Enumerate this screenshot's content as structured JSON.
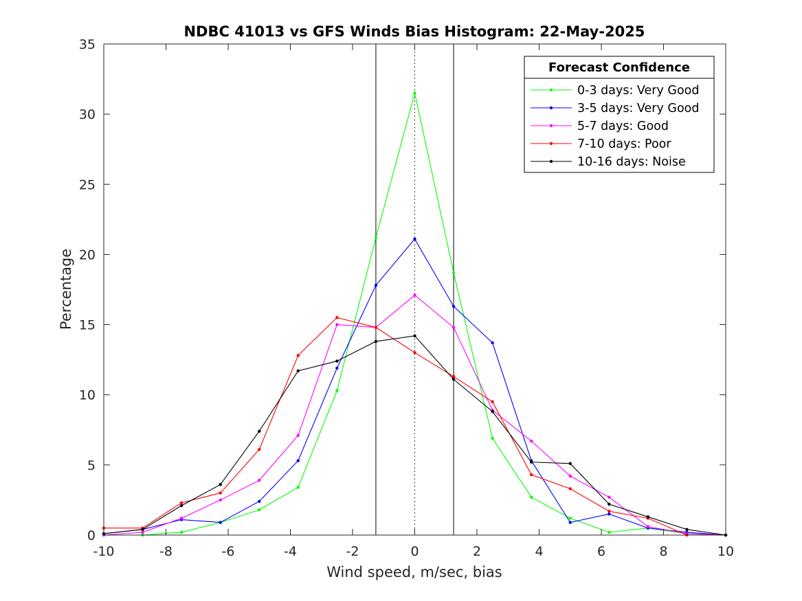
{
  "chart_data": {
    "type": "line",
    "title": "NDBC 41013 vs GFS Winds Bias Histogram: 22-May-2025",
    "xlabel": "Wind speed, m/sec, bias",
    "ylabel": "Percentage",
    "xlim": [
      -10,
      10
    ],
    "ylim": [
      0,
      35
    ],
    "xticks": [
      -10,
      -8,
      -6,
      -4,
      -2,
      0,
      2,
      4,
      6,
      8,
      10
    ],
    "yticks": [
      0,
      5,
      10,
      15,
      20,
      25,
      30,
      35
    ],
    "grid": false,
    "legend": {
      "title": "Forecast Confidence",
      "placement": "top-right"
    },
    "x": [
      -10,
      -8.75,
      -7.5,
      -6.25,
      -5,
      -3.75,
      -2.5,
      -1.25,
      0,
      1.25,
      2.5,
      3.75,
      5,
      6.25,
      7.5,
      8.75,
      10
    ],
    "series": [
      {
        "name": "0-3 days: Very Good",
        "color": "#00ff00",
        "values": [
          0,
          0,
          0.2,
          0.9,
          1.8,
          3.4,
          10.3,
          21.2,
          31.5,
          18.7,
          6.9,
          2.7,
          1.2,
          0.2,
          0.5,
          0.1,
          0
        ]
      },
      {
        "name": "3-5 days: Very Good",
        "color": "#0000ff",
        "values": [
          0.1,
          0.4,
          1.1,
          0.9,
          2.4,
          5.3,
          11.9,
          17.8,
          21.1,
          16.3,
          13.7,
          5.3,
          0.9,
          1.5,
          0.5,
          0.2,
          0
        ]
      },
      {
        "name": "5-7 days: Good",
        "color": "#ff00ff",
        "values": [
          0,
          0.2,
          1.2,
          2.5,
          3.9,
          7.1,
          15.0,
          14.8,
          17.1,
          14.8,
          8.9,
          6.7,
          4.2,
          2.7,
          0.6,
          0.1,
          0
        ]
      },
      {
        "name": "7-10 days: Poor",
        "color": "#ff0000",
        "values": [
          0.5,
          0.5,
          2.3,
          3.0,
          6.1,
          12.8,
          15.5,
          14.8,
          13.0,
          11.3,
          9.5,
          4.3,
          3.3,
          1.7,
          1.2,
          0,
          0
        ]
      },
      {
        "name": "10-16 days: Noise",
        "color": "#000000",
        "values": [
          0.1,
          0.4,
          2.1,
          3.6,
          7.4,
          11.7,
          12.4,
          13.8,
          14.2,
          11.1,
          8.8,
          5.2,
          5.1,
          2.2,
          1.3,
          0.4,
          0
        ]
      }
    ],
    "reference_lines": [
      {
        "x": -1.25,
        "style": "solid"
      },
      {
        "x": 0,
        "style": "dotted"
      },
      {
        "x": 1.25,
        "style": "solid"
      }
    ]
  }
}
